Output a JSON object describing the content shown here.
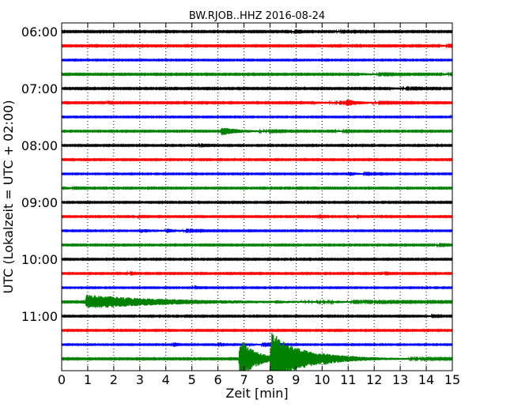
{
  "chart_data": {
    "type": "line",
    "title": "BW.RJOB..HHZ 2016-08-24",
    "xlabel": "Zeit  [min]",
    "ylabel": "UTC (Lokalzeit = UTC + 02:00)",
    "xlim": [
      0,
      15
    ],
    "x_ticks": [
      "0",
      "1",
      "2",
      "3",
      "4",
      "5",
      "6",
      "7",
      "8",
      "9",
      "10",
      "11",
      "12",
      "13",
      "14",
      "15"
    ],
    "y_ticks": [
      {
        "label": "06:00",
        "row": 0
      },
      {
        "label": "07:00",
        "row": 4
      },
      {
        "label": "08:00",
        "row": 8
      },
      {
        "label": "09:00",
        "row": 12
      },
      {
        "label": "10:00",
        "row": 16
      },
      {
        "label": "11:00",
        "row": 20
      }
    ],
    "row_interval_minutes": 15,
    "grid": "vertical dotted",
    "colors": [
      "#000000",
      "#ff0000",
      "#0000ff",
      "#008000"
    ],
    "series": [
      {
        "row": 0,
        "color": "#000000",
        "noise": 0.22,
        "events": [
          {
            "t": 8.8,
            "a": 0.25,
            "d": 0.5
          },
          {
            "t": 10.5,
            "a": 0.25,
            "d": 0.5
          }
        ]
      },
      {
        "row": 1,
        "color": "#ff0000",
        "noise": 0.22,
        "events": [
          {
            "t": 14.5,
            "a": 0.35,
            "d": 0.6
          }
        ]
      },
      {
        "row": 2,
        "color": "#0000ff",
        "noise": 0.18,
        "events": []
      },
      {
        "row": 3,
        "color": "#008000",
        "noise": 0.22,
        "events": [
          {
            "t": 11.3,
            "a": 0.55,
            "d": 1.2
          },
          {
            "t": 14.6,
            "a": 0.45,
            "d": 0.5
          }
        ]
      },
      {
        "row": 4,
        "color": "#000000",
        "noise": 0.22,
        "events": [
          {
            "t": 12.6,
            "a": 0.4,
            "d": 1.1
          }
        ]
      },
      {
        "row": 5,
        "color": "#ff0000",
        "noise": 0.22,
        "events": [
          {
            "t": 9.7,
            "a": 0.45,
            "d": 1.6
          },
          {
            "t": 10.9,
            "a": 1.5,
            "d": 1.0
          },
          {
            "t": 1.7,
            "a": 0.3,
            "d": 0.15
          }
        ]
      },
      {
        "row": 6,
        "color": "#0000ff",
        "noise": 0.18,
        "events": [
          {
            "t": 14.9,
            "a": 0.7,
            "d": 0.1
          }
        ]
      },
      {
        "row": 7,
        "color": "#008000",
        "noise": 0.2,
        "events": [
          {
            "t": 6.1,
            "a": 1.7,
            "d": 1.5
          },
          {
            "t": 10.5,
            "a": 0.3,
            "d": 0.7
          }
        ]
      },
      {
        "row": 8,
        "color": "#000000",
        "noise": 0.2,
        "events": [
          {
            "t": 5.2,
            "a": 0.2,
            "d": 0.5
          }
        ]
      },
      {
        "row": 9,
        "color": "#ff0000",
        "noise": 0.2,
        "events": []
      },
      {
        "row": 10,
        "color": "#0000ff",
        "noise": 0.18,
        "events": [
          {
            "t": 11.0,
            "a": 0.85,
            "d": 0.8
          }
        ]
      },
      {
        "row": 11,
        "color": "#008000",
        "noise": 0.2,
        "events": [
          {
            "t": 0.2,
            "a": 0.55,
            "d": 0.4
          }
        ]
      },
      {
        "row": 12,
        "color": "#000000",
        "noise": 0.2,
        "events": []
      },
      {
        "row": 13,
        "color": "#ff0000",
        "noise": 0.2,
        "events": [
          {
            "t": 2.8,
            "a": 0.35,
            "d": 0.3
          },
          {
            "t": 11.2,
            "a": 1.1,
            "d": 0.15
          },
          {
            "t": 9.8,
            "a": 0.2,
            "d": 0.3
          }
        ]
      },
      {
        "row": 14,
        "color": "#0000ff",
        "noise": 0.18,
        "events": [
          {
            "t": 3.0,
            "a": 0.7,
            "d": 2.0
          },
          {
            "t": 4.0,
            "a": 0.7,
            "d": 0.7
          }
        ]
      },
      {
        "row": 15,
        "color": "#008000",
        "noise": 0.2,
        "events": [
          {
            "t": 14.3,
            "a": 0.3,
            "d": 0.5
          }
        ]
      },
      {
        "row": 16,
        "color": "#000000",
        "noise": 0.2,
        "events": []
      },
      {
        "row": 17,
        "color": "#ff0000",
        "noise": 0.2,
        "events": [
          {
            "t": 2.5,
            "a": 0.35,
            "d": 0.3
          },
          {
            "t": 12.3,
            "a": 0.3,
            "d": 0.3
          }
        ]
      },
      {
        "row": 18,
        "color": "#0000ff",
        "noise": 0.18,
        "events": [
          {
            "t": 5.0,
            "a": 0.4,
            "d": 0.25
          }
        ]
      },
      {
        "row": 19,
        "color": "#008000",
        "noise": 0.22,
        "events": [
          {
            "t": 0.9,
            "a": 3.0,
            "d": 6.5
          },
          {
            "t": 8.2,
            "a": 0.4,
            "d": 0.6
          },
          {
            "t": 10.5,
            "a": 0.3,
            "d": 0.8
          }
        ]
      },
      {
        "row": 20,
        "color": "#000000",
        "noise": 0.2,
        "events": [
          {
            "t": 14.0,
            "a": 0.45,
            "d": 0.4
          }
        ]
      },
      {
        "row": 21,
        "color": "#ff0000",
        "noise": 0.2,
        "events": []
      },
      {
        "row": 22,
        "color": "#0000ff",
        "noise": 0.18,
        "events": [
          {
            "t": 4.2,
            "a": 0.3,
            "d": 0.3
          },
          {
            "t": 5.9,
            "a": 0.5,
            "d": 0.3
          },
          {
            "t": 7.2,
            "a": 0.5,
            "d": 1.0
          }
        ]
      },
      {
        "row": 23,
        "color": "#008000",
        "noise": 0.22,
        "events": [
          {
            "t": 6.8,
            "a": 9.5,
            "d": 1.3
          },
          {
            "t": 8.0,
            "a": 11.0,
            "d": 2.5
          },
          {
            "t": 10.0,
            "a": 0.6,
            "d": 3.0
          }
        ]
      }
    ]
  }
}
